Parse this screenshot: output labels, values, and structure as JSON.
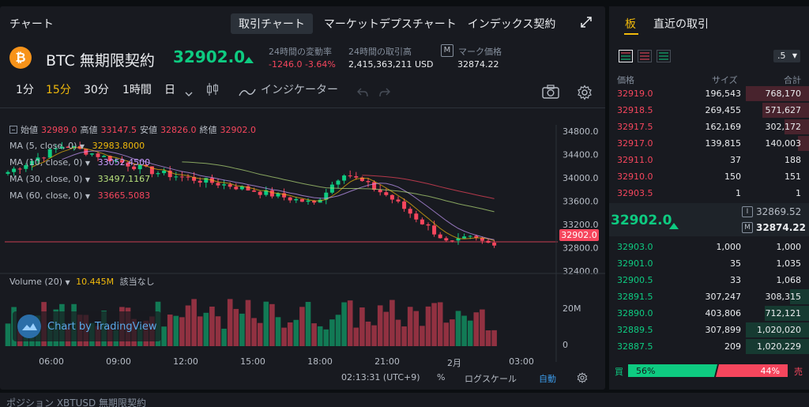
{
  "colors": {
    "bg": "#0b0e11",
    "panel": "#181a20",
    "up": "#0ecb81",
    "down": "#f6465d",
    "accent": "#f0b90b",
    "text": "#eaecef",
    "muted": "#848e9c"
  },
  "header": {
    "title": "チャート",
    "tabs": [
      "取引チャート",
      "マーケットデプスチャート",
      "インデックス契約"
    ],
    "active_tab": 0,
    "expand_icon": "expand-icon"
  },
  "ticker": {
    "symbol": "BTC 無期限契約",
    "last_price": "32902.0",
    "change_label": "24時間の変動率",
    "change_value": "-1246.0 -3.64%",
    "volume_label": "24時間の取引高",
    "volume_value": "2,415,363,211 USD",
    "mark_badge": "M",
    "mark_label": "マーク価格",
    "mark_value": "32874.22"
  },
  "toolbar": {
    "intervals": [
      "1分",
      "15分",
      "30分",
      "1時間",
      "日"
    ],
    "active_interval": 1,
    "indicators": "インジケーター",
    "icons": [
      "chevron-down-icon",
      "candles-icon",
      "indicator-wave-icon",
      "undo-icon",
      "redo-icon",
      "camera-icon",
      "gear-icon"
    ]
  },
  "ohlc": {
    "open_label": "始値",
    "open": "32989.0",
    "high_label": "高値",
    "high": "33147.5",
    "low_label": "安値",
    "low": "32826.0",
    "close_label": "終値",
    "close": "32902.0"
  },
  "ma": [
    {
      "label": "MA (5, close, 0)",
      "value": "32983.8000",
      "color": "#f0b90b"
    },
    {
      "label": "MA (10, close, 0)",
      "value": "33052.4500",
      "color": "#c99cff"
    },
    {
      "label": "MA (30, close, 0)",
      "value": "33497.1167",
      "color": "#b7e07b"
    },
    {
      "label": "MA (60, close, 0)",
      "value": "33665.5083",
      "color": "#f6465d"
    }
  ],
  "price_axis": [
    "34800.0",
    "34400.0",
    "34000.0",
    "33600.0",
    "33200.0",
    "32800.0",
    "32400.0"
  ],
  "price_tag": "32902.0",
  "volume_panel": {
    "label": "Volume (20)",
    "value": "10.445M",
    "suffix": "該当なし",
    "axis": [
      "20M",
      "0"
    ]
  },
  "watermark": "Chart by TradingView",
  "time_axis": [
    "06:00",
    "09:00",
    "12:00",
    "15:00",
    "18:00",
    "21:00",
    "2月",
    "03:00"
  ],
  "footer": {
    "clock": "02:13:31 (UTC+9)",
    "percent": "%",
    "log": "ログスケール",
    "auto": "自動"
  },
  "orderbook": {
    "tabs": [
      "板",
      "直近の取引"
    ],
    "precision": ".5",
    "headers": [
      "価格",
      "サイズ",
      "合計"
    ],
    "asks": [
      {
        "price": "32919.0",
        "size": "196,543",
        "total": "768,170",
        "depth": 1.0
      },
      {
        "price": "32918.5",
        "size": "269,455",
        "total": "571,627",
        "depth": 0.74
      },
      {
        "price": "32917.5",
        "size": "162,169",
        "total": "302,172",
        "depth": 0.39
      },
      {
        "price": "32917.0",
        "size": "139,815",
        "total": "140,003",
        "depth": 0.18
      },
      {
        "price": "32911.0",
        "size": "37",
        "total": "188",
        "depth": 0.0
      },
      {
        "price": "32910.0",
        "size": "150",
        "total": "151",
        "depth": 0.0
      },
      {
        "price": "32903.5",
        "size": "1",
        "total": "1",
        "depth": 0.0
      }
    ],
    "mid": {
      "price": "32902.0",
      "index_badge": "I",
      "index_price": "32869.52",
      "mark_badge": "M",
      "mark_price": "32874.22"
    },
    "bids": [
      {
        "price": "32903.0",
        "size": "1,000",
        "total": "1,000",
        "depth": 0.0
      },
      {
        "price": "32901.0",
        "size": "35",
        "total": "1,035",
        "depth": 0.0
      },
      {
        "price": "32900.5",
        "size": "33",
        "total": "1,068",
        "depth": 0.0
      },
      {
        "price": "32891.5",
        "size": "307,247",
        "total": "308,315",
        "depth": 0.3
      },
      {
        "price": "32890.0",
        "size": "403,806",
        "total": "712,121",
        "depth": 0.7
      },
      {
        "price": "32889.5",
        "size": "307,899",
        "total": "1,020,020",
        "depth": 1.0
      },
      {
        "price": "32887.5",
        "size": "209",
        "total": "1,020,229",
        "depth": 1.0
      }
    ],
    "buy_label": "買",
    "buy_pct": "56%",
    "buy_ratio": 0.56,
    "sell_label": "売",
    "sell_pct": "44%"
  },
  "bottom": {
    "text": "ポジション  XBTUSD 無期限契約"
  }
}
